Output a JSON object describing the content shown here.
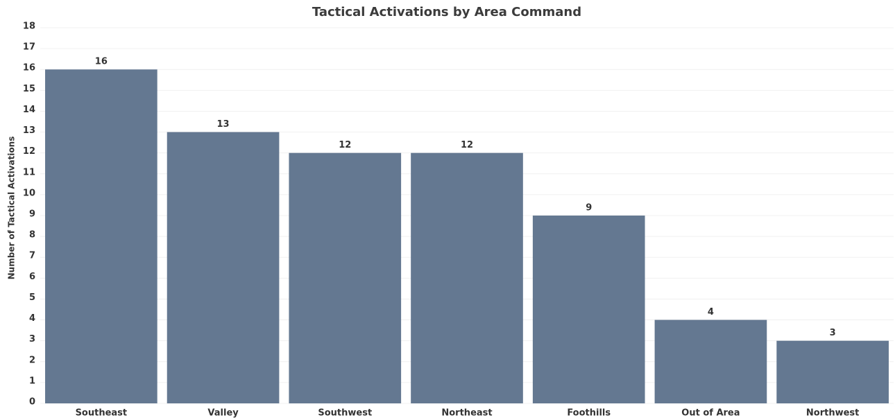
{
  "chart_data": {
    "type": "bar",
    "title": "Tactical Activations by Area Command",
    "y_label": "Number of Tactical Activations",
    "categories": [
      "Southeast",
      "Valley",
      "Southwest",
      "Northeast",
      "Foothills",
      "Out of Area",
      "Northwest"
    ],
    "values": [
      16,
      13,
      12,
      12,
      9,
      4,
      3
    ],
    "color": "#647891",
    "ylim": [
      0,
      18
    ],
    "yticks": [
      0,
      1,
      2,
      3,
      4,
      5,
      6,
      7,
      8,
      9,
      10,
      11,
      12,
      13,
      14,
      15,
      16,
      17,
      18
    ],
    "grid": true
  }
}
